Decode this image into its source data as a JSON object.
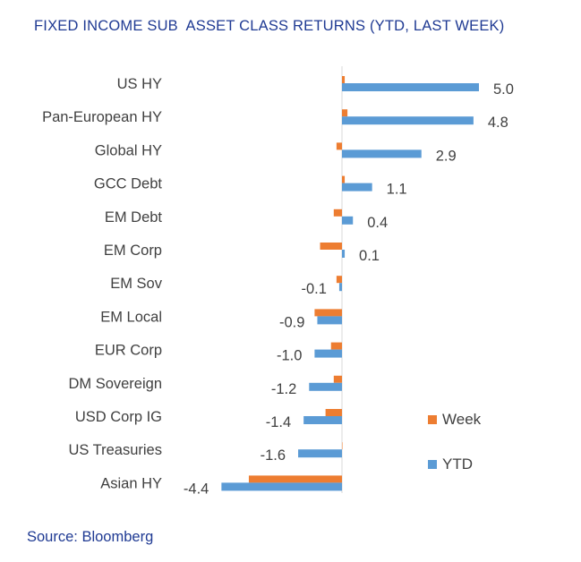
{
  "title": "FIXED INCOME SUB  ASSET CLASS RETURNS (YTD, LAST WEEK)",
  "source": "Source: Bloomberg",
  "colors": {
    "week": "#ed7d31",
    "ytd": "#5b9bd5",
    "text": "#404040",
    "title": "#1f3a93",
    "axis": "#d9d9d9"
  },
  "chart_data": {
    "type": "bar",
    "orientation": "horizontal",
    "categories": [
      "US HY",
      "Pan-European HY",
      "Global HY",
      "GCC Debt",
      "EM Debt",
      "EM Corp",
      "EM Sov",
      "EM Local",
      "EUR Corp",
      "DM Sovereign",
      "USD Corp IG",
      "US Treasuries",
      "Asian HY"
    ],
    "series": [
      {
        "name": "Week",
        "values": [
          0.1,
          0.2,
          -0.2,
          0.1,
          -0.3,
          -0.8,
          -0.2,
          -1.0,
          -0.4,
          -0.3,
          -0.6,
          0.0,
          -3.4
        ]
      },
      {
        "name": "YTD",
        "values": [
          5.0,
          4.8,
          2.9,
          1.1,
          0.4,
          0.1,
          -0.1,
          -0.9,
          -1.0,
          -1.2,
          -1.4,
          -1.6,
          -4.4
        ]
      }
    ],
    "data_labels": [
      "5.0",
      "4.8",
      "2.9",
      "1.1",
      "0.4",
      "0.1",
      "-0.1",
      "-0.9",
      "-1.0",
      "-1.2",
      "-1.4",
      "-1.6",
      "-4.4"
    ],
    "xlim": [
      -4.5,
      5.2
    ],
    "legend": [
      "Week",
      "YTD"
    ],
    "legend_position": "right",
    "grid": false
  }
}
